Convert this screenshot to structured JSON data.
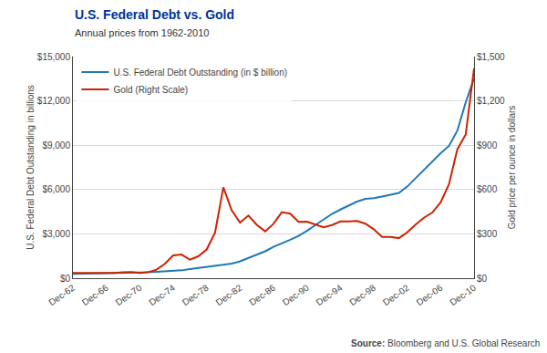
{
  "chart_data": {
    "type": "line",
    "title": "U.S. Federal Debt vs. Gold",
    "subtitle": "Annual prices from 1962-2010",
    "annotations": [
      "Source: Bloomberg and U.S. Global Research"
    ],
    "ylabel": "U.S. Federal Debt Outstanding in billions",
    "y2label": "Gold price per ounce in dollars",
    "x": [
      1962,
      1963,
      1964,
      1965,
      1966,
      1967,
      1968,
      1969,
      1970,
      1971,
      1972,
      1973,
      1974,
      1975,
      1976,
      1977,
      1978,
      1979,
      1980,
      1981,
      1982,
      1983,
      1984,
      1985,
      1986,
      1987,
      1988,
      1989,
      1990,
      1991,
      1992,
      1993,
      1994,
      1995,
      1996,
      1997,
      1998,
      1999,
      2000,
      2001,
      2002,
      2003,
      2004,
      2005,
      2006,
      2007,
      2008,
      2009,
      2010
    ],
    "series": [
      {
        "name": "U.S. Federal Debt Outstanding (in $ billion)",
        "color": "#2079b4",
        "axis": "y",
        "values": [
          298,
          306,
          312,
          317,
          320,
          326,
          348,
          354,
          371,
          398,
          427,
          458,
          475,
          533,
          620,
          699,
          772,
          827,
          908,
          994,
          1142,
          1377,
          1572,
          1823,
          2125,
          2350,
          2601,
          2868,
          3206,
          3598,
          4002,
          4351,
          4644,
          4921,
          5182,
          5369,
          5413,
          5526,
          5629,
          5770,
          6198,
          6760,
          7355,
          7905,
          8451,
          8951,
          9986,
          11898,
          13528
        ]
      },
      {
        "name": "Gold (Right Scale)",
        "color": "#cc2200",
        "axis": "y2",
        "values": [
          35,
          35,
          35,
          35,
          35,
          35,
          40,
          41,
          36,
          41,
          58,
          97,
          154,
          160,
          125,
          148,
          194,
          307,
          615,
          460,
          376,
          424,
          361,
          317,
          368,
          447,
          437,
          381,
          383,
          362,
          344,
          360,
          384,
          384,
          387,
          369,
          331,
          279,
          279,
          271,
          310,
          363,
          409,
          444,
          513,
          636,
          872,
          972,
          1421
        ]
      }
    ],
    "xlim": [
      1962,
      2010
    ],
    "xticks": [
      {
        "value": 1962,
        "label": "Dec-62"
      },
      {
        "value": 1966,
        "label": "Dec-66"
      },
      {
        "value": 1970,
        "label": "Dec-70"
      },
      {
        "value": 1974,
        "label": "Dec-74"
      },
      {
        "value": 1978,
        "label": "Dec-78"
      },
      {
        "value": 1982,
        "label": "Dec-82"
      },
      {
        "value": 1986,
        "label": "Dec-86"
      },
      {
        "value": 1990,
        "label": "Dec-90"
      },
      {
        "value": 1994,
        "label": "Dec-94"
      },
      {
        "value": 1998,
        "label": "Dec-98"
      },
      {
        "value": 2002,
        "label": "Dec-02"
      },
      {
        "value": 2006,
        "label": "Dec-06"
      },
      {
        "value": 2010,
        "label": "Dec-10"
      }
    ],
    "ylim": [
      0,
      15000
    ],
    "yticks": [
      {
        "value": 0,
        "label": "$0"
      },
      {
        "value": 3000,
        "label": "$3,000"
      },
      {
        "value": 6000,
        "label": "$6,000"
      },
      {
        "value": 9000,
        "label": "$9,000"
      },
      {
        "value": 12000,
        "label": "$12,000"
      },
      {
        "value": 15000,
        "label": "$15,000"
      }
    ],
    "y2lim": [
      0,
      1500
    ],
    "y2ticks": [
      {
        "value": 0,
        "label": "$0"
      },
      {
        "value": 300,
        "label": "$300"
      },
      {
        "value": 600,
        "label": "$600"
      },
      {
        "value": 900,
        "label": "$900"
      },
      {
        "value": 1200,
        "label": "$1,200"
      },
      {
        "value": 1500,
        "label": "$1,500"
      }
    ],
    "grid": true,
    "legend": "upper left"
  }
}
